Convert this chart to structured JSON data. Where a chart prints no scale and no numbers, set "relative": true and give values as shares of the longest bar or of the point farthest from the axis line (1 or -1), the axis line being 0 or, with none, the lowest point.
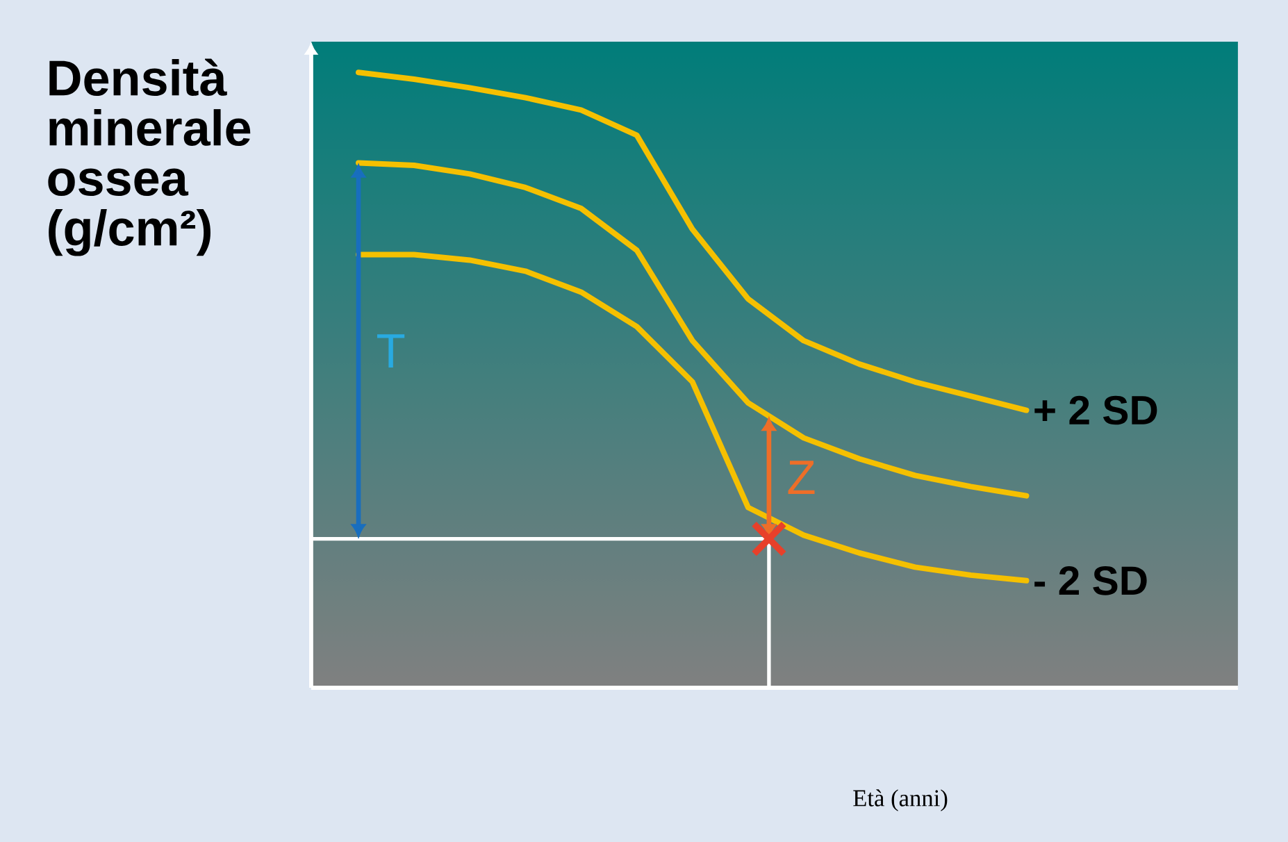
{
  "chart_data": {
    "type": "line",
    "ylabel": "Densità minerale ossea (g/cm²)",
    "xlabel": "Età (anni)",
    "relative": true,
    "categories": [
      null,
      null,
      null,
      null,
      null,
      null,
      null,
      null,
      null,
      null,
      null,
      null,
      null
    ],
    "series": [
      {
        "name": "+ 2 SD",
        "color": "#f5c000",
        "values": [
          1.0,
          0.989,
          0.975,
          0.959,
          0.939,
          0.898,
          0.745,
          0.632,
          0.564,
          0.526,
          0.497,
          0.474,
          0.451
        ]
      },
      {
        "color": "#f5c000",
        "values": [
          0.853,
          0.849,
          0.835,
          0.813,
          0.779,
          0.711,
          0.564,
          0.463,
          0.406,
          0.372,
          0.345,
          0.327,
          0.312
        ]
      },
      {
        "name": "- 2 SD",
        "color": "#f5c000",
        "values": [
          0.704,
          0.704,
          0.695,
          0.677,
          0.643,
          0.587,
          0.497,
          0.293,
          0.248,
          0.219,
          0.196,
          0.183,
          0.174
        ]
      }
    ],
    "ref_lines": [
      {
        "axis": "y",
        "value": 0.242,
        "color": "#ffffff"
      }
    ],
    "annotations": [
      "T",
      "Z"
    ]
  }
}
